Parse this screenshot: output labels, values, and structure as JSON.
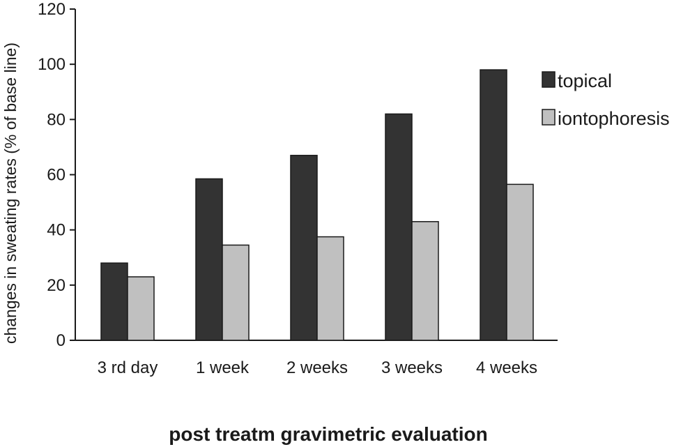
{
  "chart_data": {
    "type": "bar",
    "title": "",
    "xlabel": "post treatm gravimetric evaluation",
    "ylabel": "changes in sweating rates (% of base line)",
    "categories": [
      "3 rd day",
      "1 week",
      "2 weeks",
      "3 weeks",
      "4 weeks"
    ],
    "series": [
      {
        "name": "topical",
        "values": [
          28,
          58.5,
          67,
          82,
          98
        ],
        "color": "#333333"
      },
      {
        "name": "iontophoresis",
        "values": [
          23,
          34.5,
          37.5,
          43,
          56.5
        ],
        "color": "#c0c0c0"
      }
    ],
    "ylim": [
      0,
      120
    ],
    "yticks": [
      0,
      20,
      40,
      60,
      80,
      100,
      120
    ],
    "grid": false,
    "legend_position": "right"
  }
}
